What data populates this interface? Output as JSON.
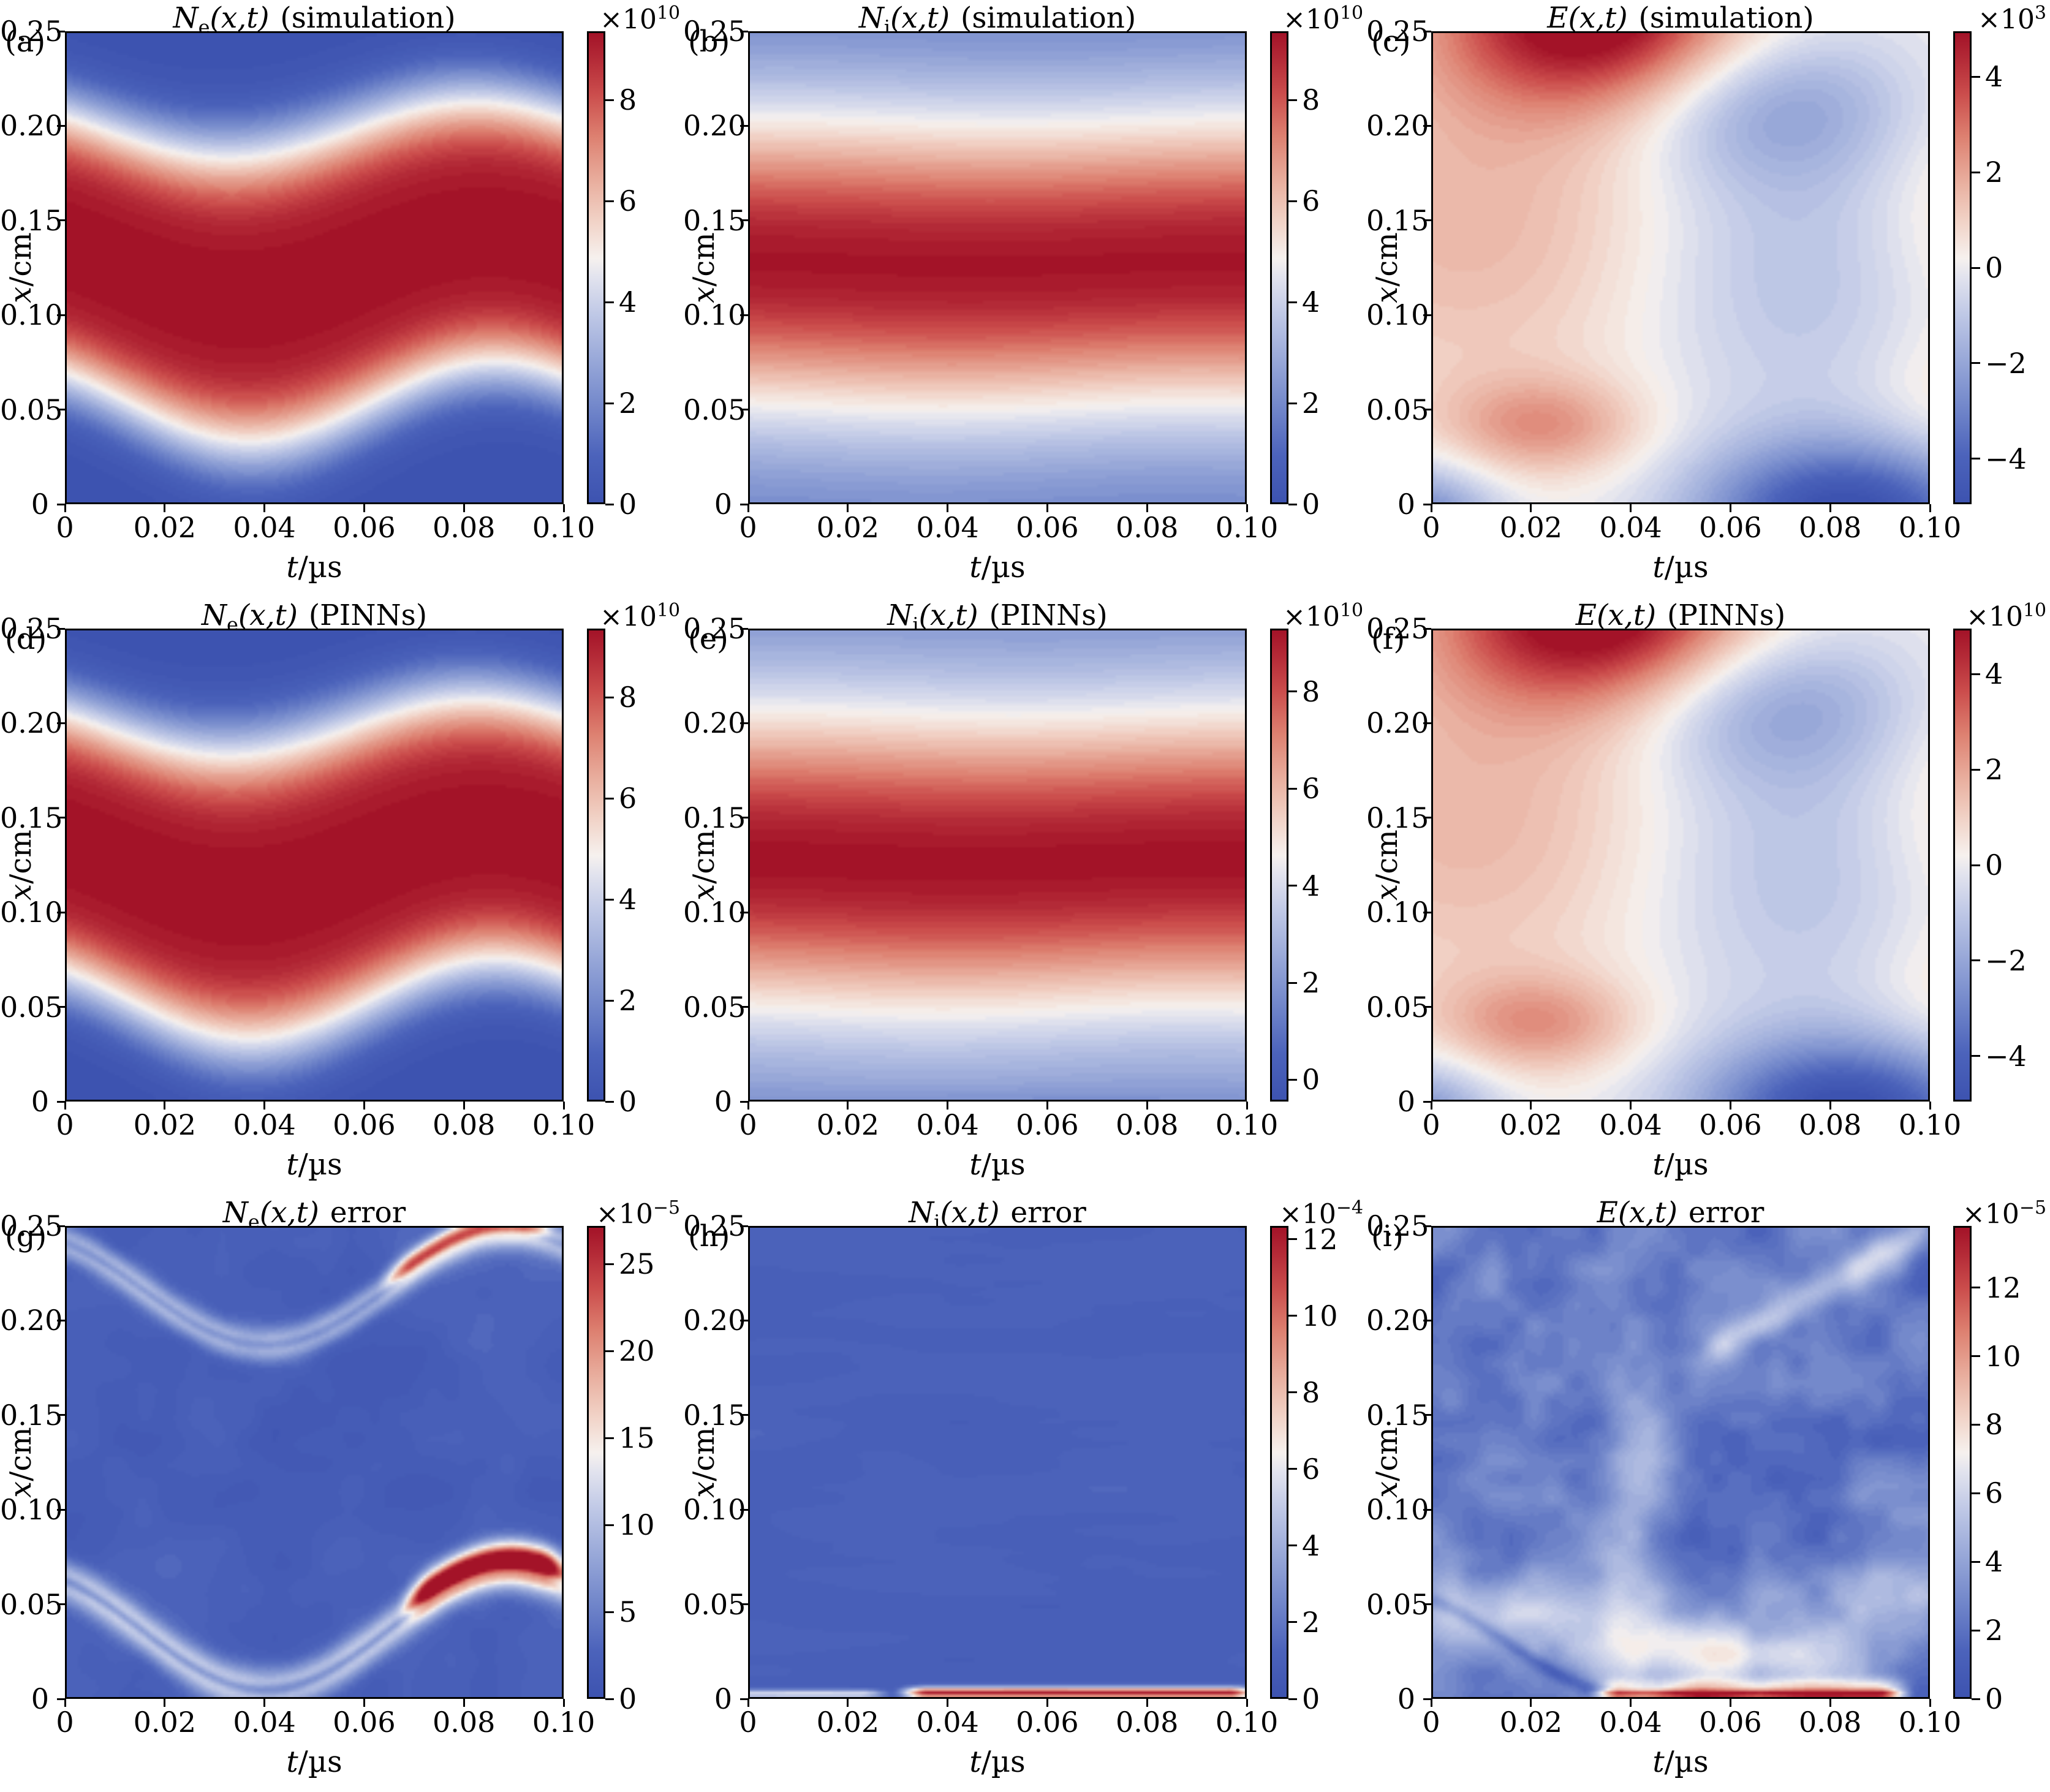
{
  "figure": {
    "background": "#ffffff",
    "frame_color": "#000000",
    "rows": 3,
    "cols": 3
  },
  "labels": {
    "exp_base": "×10"
  },
  "colormap": {
    "name": "red-white-blue-diverging",
    "stops": [
      {
        "p": 0.0,
        "c": "#3d53b0"
      },
      {
        "p": 0.1,
        "c": "#4c63bb"
      },
      {
        "p": 0.2,
        "c": "#7186ca"
      },
      {
        "p": 0.3,
        "c": "#97a7d8"
      },
      {
        "p": 0.4,
        "c": "#bfc8e6"
      },
      {
        "p": 0.48,
        "c": "#e2e3ee"
      },
      {
        "p": 0.52,
        "c": "#f6f1ee"
      },
      {
        "p": 0.6,
        "c": "#f1d2c6"
      },
      {
        "p": 0.68,
        "c": "#e9b0a0"
      },
      {
        "p": 0.78,
        "c": "#dd8070"
      },
      {
        "p": 0.87,
        "c": "#cb4d4c"
      },
      {
        "p": 0.94,
        "c": "#b52c38"
      },
      {
        "p": 1.0,
        "c": "#a31328"
      }
    ]
  },
  "axes": {
    "x": {
      "sym": "t",
      "unit": "/µs",
      "min": 0,
      "max": 0.1,
      "ticks": [
        {
          "f": 0.0,
          "l": "0"
        },
        {
          "f": 0.2,
          "l": "0.02"
        },
        {
          "f": 0.4,
          "l": "0.04"
        },
        {
          "f": 0.6,
          "l": "0.06"
        },
        {
          "f": 0.8,
          "l": "0.08"
        },
        {
          "f": 1.0,
          "l": "0.10"
        }
      ]
    },
    "y": {
      "sym": "x",
      "unit": "/cm",
      "min": 0,
      "max": 0.25,
      "ticks": [
        {
          "f": 0.0,
          "l": "0"
        },
        {
          "f": 0.2,
          "l": "0.05"
        },
        {
          "f": 0.4,
          "l": "0.10"
        },
        {
          "f": 0.6,
          "l": "0.15"
        },
        {
          "f": 0.8,
          "l": "0.20"
        },
        {
          "f": 1.0,
          "l": "0.25"
        }
      ]
    }
  },
  "chart_data": [
    {
      "type": "heatmap",
      "tag": "(a)",
      "title": {
        "sym": "N",
        "sub": "e",
        "args": "(x,t)",
        "note": "(simulation)"
      },
      "exp": "10",
      "vmin": 0,
      "vmax": 9.36,
      "cticks": [
        {
          "v": 0,
          "l": "0"
        },
        {
          "v": 2,
          "l": "2"
        },
        {
          "v": 4,
          "l": "4"
        },
        {
          "v": 6,
          "l": "6"
        },
        {
          "v": 8,
          "l": "8"
        }
      ],
      "terms": [
        {
          "k": "band",
          "a": 9.36,
          "c0": 0.126,
          "ca": 0.018,
          "ph": 0.01,
          "T": 0.1,
          "w0": 0.0805,
          "wa": 0.0045,
          "wph": 0.02,
          "p": 4
        }
      ]
    },
    {
      "type": "heatmap",
      "tag": "(b)",
      "title": {
        "sym": "N",
        "sub": "i",
        "args": "(x,t)",
        "note": "(simulation)"
      },
      "exp": "10",
      "vmin": 0,
      "vmax": 9.36,
      "cticks": [
        {
          "v": 0,
          "l": "0"
        },
        {
          "v": 2,
          "l": "2"
        },
        {
          "v": 4,
          "l": "4"
        },
        {
          "v": 6,
          "l": "6"
        },
        {
          "v": 8,
          "l": "8"
        }
      ],
      "terms": [
        {
          "k": "const",
          "a": 1.3
        },
        {
          "k": "band",
          "a": 8.0,
          "c0": 0.127,
          "ca": 0.0015,
          "ph": 0.02,
          "T": 0.1,
          "w0": 0.085,
          "wa": 0.0008,
          "wph": 0.0,
          "p": 2
        }
      ]
    },
    {
      "type": "heatmap",
      "tag": "(c)",
      "title": {
        "sym": "E",
        "sub": "",
        "args": "(x,t)",
        "note": "(simulation)"
      },
      "exp": "3",
      "vmin": -4.95,
      "vmax": 4.95,
      "cticks": [
        {
          "v": -4,
          "l": "−4"
        },
        {
          "v": -2,
          "l": "−2"
        },
        {
          "v": 0,
          "l": "0"
        },
        {
          "v": 2,
          "l": "2"
        },
        {
          "v": 4,
          "l": "4"
        }
      ],
      "terms": [
        {
          "k": "blob",
          "a": 5.6,
          "t0": 0.032,
          "x0": 0.262,
          "st": 0.03,
          "sx": 0.05
        },
        {
          "k": "blob",
          "a": 1.7,
          "t0": 0.012,
          "x0": 0.15,
          "st": 0.05,
          "sx": 0.105
        },
        {
          "k": "blob",
          "a": 2.1,
          "t0": 0.022,
          "x0": 0.04,
          "st": 0.02,
          "sx": 0.026
        },
        {
          "k": "blob",
          "a": -3.4,
          "t0": -0.004,
          "x0": -0.012,
          "st": 0.016,
          "sx": 0.03
        },
        {
          "k": "blob",
          "a": -5.2,
          "t0": 0.084,
          "x0": -0.008,
          "st": 0.03,
          "sx": 0.04
        },
        {
          "k": "blob",
          "a": -2.1,
          "t0": 0.068,
          "x0": 0.212,
          "st": 0.03,
          "sx": 0.042
        },
        {
          "k": "blob",
          "a": -1.5,
          "t0": 0.072,
          "x0": 0.125,
          "st": 0.038,
          "sx": 0.085
        },
        {
          "k": "blob",
          "a": 1.1,
          "t0": 0.107,
          "x0": 0.155,
          "st": 0.022,
          "sx": 0.075
        },
        {
          "k": "blob",
          "a": 0.8,
          "t0": 0.105,
          "x0": 0.05,
          "st": 0.018,
          "sx": 0.04
        }
      ]
    },
    {
      "type": "heatmap",
      "tag": "(d)",
      "title": {
        "sym": "N",
        "sub": "e",
        "args": "(x,t)",
        "note": "(PINNs)"
      },
      "exp": "10",
      "vmin": 0,
      "vmax": 9.36,
      "cticks": [
        {
          "v": 0,
          "l": "0"
        },
        {
          "v": 2,
          "l": "2"
        },
        {
          "v": 4,
          "l": "4"
        },
        {
          "v": 6,
          "l": "6"
        },
        {
          "v": 8,
          "l": "8"
        }
      ],
      "terms": [
        {
          "k": "band",
          "a": 9.36,
          "c0": 0.126,
          "ca": 0.018,
          "ph": 0.01,
          "T": 0.1,
          "w0": 0.0805,
          "wa": 0.0045,
          "wph": 0.02,
          "p": 4
        }
      ]
    },
    {
      "type": "heatmap",
      "tag": "(e)",
      "title": {
        "sym": "N",
        "sub": "i",
        "args": "(x,t)",
        "note": "(PINNs)"
      },
      "exp": "10",
      "vmin": -0.45,
      "vmax": 9.3,
      "cticks": [
        {
          "v": 0,
          "l": "0"
        },
        {
          "v": 2,
          "l": "2"
        },
        {
          "v": 4,
          "l": "4"
        },
        {
          "v": 6,
          "l": "6"
        },
        {
          "v": 8,
          "l": "8"
        }
      ],
      "terms": [
        {
          "k": "const",
          "a": 1.3
        },
        {
          "k": "band",
          "a": 8.0,
          "c0": 0.127,
          "ca": 0.0015,
          "ph": 0.02,
          "T": 0.1,
          "w0": 0.085,
          "wa": 0.0008,
          "wph": 0.0,
          "p": 2
        },
        {
          "k": "blob",
          "a": -0.9,
          "t0": 0.05,
          "x0": -0.012,
          "st": 0.06,
          "sx": 0.012
        }
      ]
    },
    {
      "type": "heatmap",
      "tag": "(f)",
      "title": {
        "sym": "E",
        "sub": "",
        "args": "(x,t)",
        "note": "(PINNs)"
      },
      "exp": "10",
      "vmin": -4.95,
      "vmax": 4.95,
      "cticks": [
        {
          "v": -4,
          "l": "−4"
        },
        {
          "v": -2,
          "l": "−2"
        },
        {
          "v": 0,
          "l": "0"
        },
        {
          "v": 2,
          "l": "2"
        },
        {
          "v": 4,
          "l": "4"
        }
      ],
      "terms": [
        {
          "k": "blob",
          "a": 5.6,
          "t0": 0.033,
          "x0": 0.262,
          "st": 0.031,
          "sx": 0.05
        },
        {
          "k": "blob",
          "a": 1.7,
          "t0": 0.012,
          "x0": 0.15,
          "st": 0.05,
          "sx": 0.105
        },
        {
          "k": "blob",
          "a": 2.1,
          "t0": 0.021,
          "x0": 0.04,
          "st": 0.02,
          "sx": 0.026
        },
        {
          "k": "blob",
          "a": -3.0,
          "t0": -0.004,
          "x0": -0.012,
          "st": 0.016,
          "sx": 0.03
        },
        {
          "k": "blob",
          "a": -5.2,
          "t0": 0.084,
          "x0": -0.008,
          "st": 0.03,
          "sx": 0.04
        },
        {
          "k": "blob",
          "a": -2.1,
          "t0": 0.068,
          "x0": 0.212,
          "st": 0.03,
          "sx": 0.042
        },
        {
          "k": "blob",
          "a": -1.5,
          "t0": 0.072,
          "x0": 0.125,
          "st": 0.038,
          "sx": 0.085
        },
        {
          "k": "blob",
          "a": 1.1,
          "t0": 0.107,
          "x0": 0.155,
          "st": 0.022,
          "sx": 0.075
        },
        {
          "k": "blob",
          "a": 0.8,
          "t0": 0.105,
          "x0": 0.05,
          "st": 0.018,
          "sx": 0.04
        }
      ]
    },
    {
      "type": "heatmap",
      "tag": "(g)",
      "title": {
        "sym": "N",
        "sub": "e",
        "args": "(x,t)",
        "note": "error"
      },
      "exp": "−5",
      "vmin": 0,
      "vmax": 27.2,
      "cticks": [
        {
          "v": 0,
          "l": "0"
        },
        {
          "v": 5,
          "l": "5"
        },
        {
          "v": 10,
          "l": "10"
        },
        {
          "v": 15,
          "l": "15"
        },
        {
          "v": 20,
          "l": "20"
        },
        {
          "v": 25,
          "l": "25"
        }
      ],
      "terms": [
        {
          "k": "const",
          "a": 2.0
        },
        {
          "k": "noise",
          "a": 1.3,
          "s": 7,
          "sxn": 7,
          "seed": 2
        },
        {
          "k": "ridge",
          "a": 11,
          "c0": 0.035,
          "ca": 0.032,
          "ph": 0.015,
          "T": 0.1,
          "w": 0.011,
          "t0": -0.01,
          "t1": 0.12
        },
        {
          "k": "ridge",
          "a": -6,
          "c0": 0.035,
          "ca": 0.032,
          "ph": 0.015,
          "T": 0.1,
          "w": 0.0032,
          "t0": -0.01,
          "t1": 0.12
        },
        {
          "k": "ridge",
          "a": 24,
          "c0": 0.041,
          "ca": 0.032,
          "ph": 0.015,
          "T": 0.1,
          "w": 0.009,
          "t0": 0.066,
          "t1": 0.104
        },
        {
          "k": "ridge",
          "a": 9,
          "c0": 0.218,
          "ca": 0.03,
          "ph": 0.015,
          "T": 0.1,
          "w": 0.009,
          "t0": -0.01,
          "t1": 0.12
        },
        {
          "k": "ridge",
          "a": -4,
          "c0": 0.218,
          "ca": 0.03,
          "ph": 0.015,
          "T": 0.1,
          "w": 0.0028,
          "t0": -0.01,
          "t1": 0.12
        },
        {
          "k": "ridge",
          "a": 15,
          "c0": 0.223,
          "ca": 0.03,
          "ph": 0.015,
          "T": 0.1,
          "w": 0.0065,
          "t0": 0.062,
          "t1": 0.1
        }
      ]
    },
    {
      "type": "heatmap",
      "tag": "(h)",
      "title": {
        "sym": "N",
        "sub": "i",
        "args": "(x,t)",
        "note": "error"
      },
      "exp": "−4",
      "vmin": 0,
      "vmax": 12.35,
      "cticks": [
        {
          "v": 0,
          "l": "0"
        },
        {
          "v": 2,
          "l": "2"
        },
        {
          "v": 4,
          "l": "4"
        },
        {
          "v": 6,
          "l": "6"
        },
        {
          "v": 8,
          "l": "8"
        },
        {
          "v": 10,
          "l": "10"
        },
        {
          "v": 12,
          "l": "12"
        }
      ],
      "terms": [
        {
          "k": "const",
          "a": 1.05
        },
        {
          "k": "noise",
          "a": 0.3,
          "s": 2.5,
          "sxn": 16,
          "seed": 5
        },
        {
          "k": "hstrip",
          "a": 11.3,
          "x0": 0.0015,
          "sx": 0.0028,
          "t0": 0.028,
          "t1": 0.105
        },
        {
          "k": "hstrip",
          "a": 5.0,
          "x0": 0.001,
          "sx": 0.002,
          "t0": -0.01,
          "t1": 0.03
        }
      ]
    },
    {
      "type": "heatmap",
      "tag": "(i)",
      "title": {
        "sym": "E",
        "sub": "",
        "args": "(x,t)",
        "note": "error"
      },
      "exp": "−5",
      "vmin": 0,
      "vmax": 13.8,
      "cticks": [
        {
          "v": 0,
          "l": "0"
        },
        {
          "v": 2,
          "l": "2"
        },
        {
          "v": 4,
          "l": "4"
        },
        {
          "v": 6,
          "l": "6"
        },
        {
          "v": 8,
          "l": "8"
        },
        {
          "v": 10,
          "l": "10"
        },
        {
          "v": 12,
          "l": "12"
        }
      ],
      "terms": [
        {
          "k": "const",
          "a": 2.3
        },
        {
          "k": "noise",
          "a": 1.5,
          "s": 9,
          "sxn": 9,
          "seed": 8
        },
        {
          "k": "blob",
          "a": 3.6,
          "t0": 0.012,
          "x0": 0.045,
          "st": 0.02,
          "sx": 0.02
        },
        {
          "k": "blob",
          "a": 3.2,
          "t0": 0.047,
          "x0": 0.026,
          "st": 0.022,
          "sx": 0.02
        },
        {
          "k": "blob",
          "a": 3.0,
          "t0": 0.068,
          "x0": 0.02,
          "st": 0.02,
          "sx": 0.016
        },
        {
          "k": "blob",
          "a": 2.6,
          "t0": 0.092,
          "x0": 0.052,
          "st": 0.02,
          "sx": 0.02
        },
        {
          "k": "blob",
          "a": 2.4,
          "t0": 0.04,
          "x0": 0.1,
          "st": 0.007,
          "sx": 0.1
        },
        {
          "k": "dridge",
          "a": 3.2,
          "c0": 0.19,
          "m": 1.5,
          "tr": 0.06,
          "w": 0.011,
          "t0": 0.052,
          "t1": 0.105
        },
        {
          "k": "ridge",
          "a": -1.8,
          "c0": 0.028,
          "ca": 0.028,
          "ph": 0.015,
          "T": 0.1,
          "w": 0.0045,
          "t0": -0.01,
          "t1": 0.05
        },
        {
          "k": "hstrip",
          "a": 4.0,
          "x0": 0.004,
          "sx": 0.005,
          "t0": 0.03,
          "t1": 0.098
        },
        {
          "k": "hstrip",
          "a": 8.5,
          "x0": 0.0008,
          "sx": 0.0022,
          "t0": 0.03,
          "t1": 0.098
        }
      ]
    }
  ]
}
